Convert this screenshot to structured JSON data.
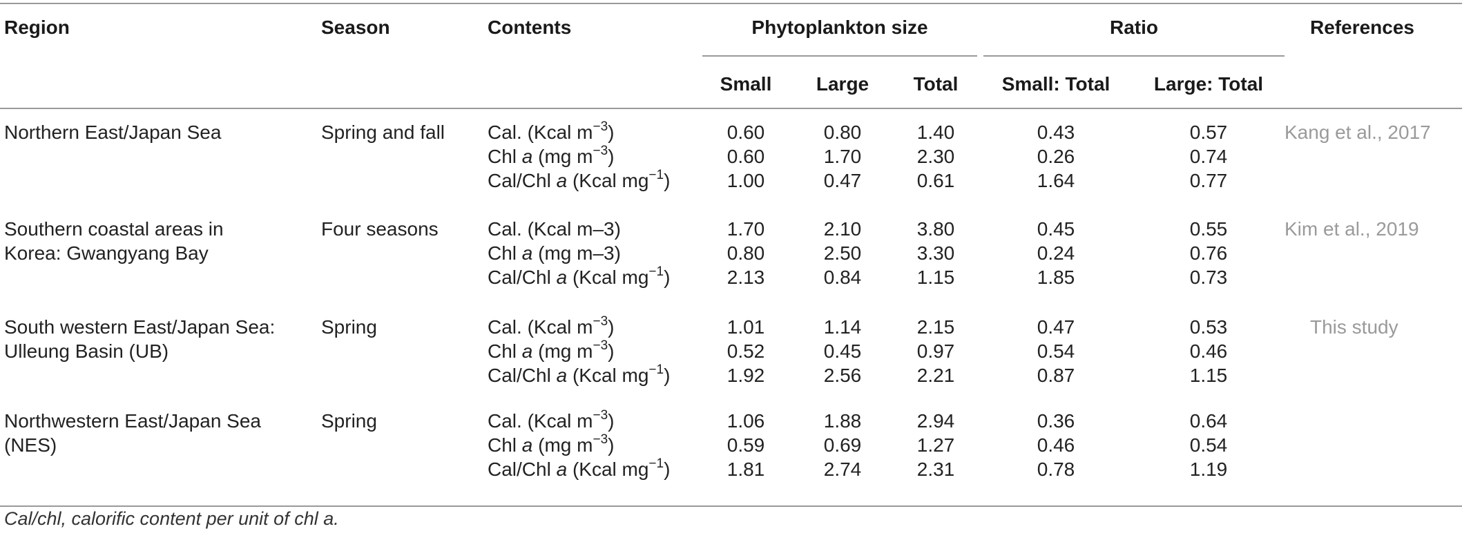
{
  "headers": {
    "region": "Region",
    "season": "Season",
    "contents": "Contents",
    "phytoplankton_size": "Phytoplankton size",
    "ratio": "Ratio",
    "references": "References",
    "small": "Small",
    "large": "Large",
    "total": "Total",
    "small_total": "Small: Total",
    "large_total": "Large: Total"
  },
  "groups": [
    {
      "region_lines": [
        "Northern East/Japan Sea"
      ],
      "season": "Spring and fall",
      "reference": "Kang et al., 2017",
      "rows": [
        {
          "c_pre": "Cal. (Kcal m",
          "c_it": "",
          "c_mid": "",
          "c_sup": "−3",
          "c_post": ")",
          "small": "0.60",
          "large": "0.80",
          "total": "1.40",
          "small_total": "0.43",
          "large_total": "0.57"
        },
        {
          "c_pre": "Chl ",
          "c_it": "a",
          "c_mid": " (mg m",
          "c_sup": "−3",
          "c_post": ")",
          "small": "0.60",
          "large": "1.70",
          "total": "2.30",
          "small_total": "0.26",
          "large_total": "0.74"
        },
        {
          "c_pre": "Cal/Chl ",
          "c_it": "a",
          "c_mid": " (Kcal mg",
          "c_sup": "−1",
          "c_post": ")",
          "small": "1.00",
          "large": "0.47",
          "total": "0.61",
          "small_total": "1.64",
          "large_total": "0.77"
        }
      ]
    },
    {
      "region_lines": [
        "Southern coastal areas in",
        "Korea: Gwangyang Bay"
      ],
      "season": "Four seasons",
      "reference": "Kim et al., 2019",
      "rows": [
        {
          "c_pre": "Cal. (Kcal m–3)",
          "c_it": "",
          "c_mid": "",
          "c_sup": "",
          "c_post": "",
          "small": "1.70",
          "large": "2.10",
          "total": "3.80",
          "small_total": "0.45",
          "large_total": "0.55"
        },
        {
          "c_pre": "Chl ",
          "c_it": "a",
          "c_mid": " (mg m–3)",
          "c_sup": "",
          "c_post": "",
          "small": "0.80",
          "large": "2.50",
          "total": "3.30",
          "small_total": "0.24",
          "large_total": "0.76"
        },
        {
          "c_pre": "Cal/Chl ",
          "c_it": "a",
          "c_mid": " (Kcal mg",
          "c_sup": "−1",
          "c_post": ")",
          "small": "2.13",
          "large": "0.84",
          "total": "1.15",
          "small_total": "1.85",
          "large_total": "0.73"
        }
      ]
    },
    {
      "region_lines": [
        "South western East/Japan Sea:",
        "Ulleung Basin (UB)"
      ],
      "season": "Spring",
      "reference": "This study",
      "rows": [
        {
          "c_pre": "Cal. (Kcal m",
          "c_it": "",
          "c_mid": "",
          "c_sup": "−3",
          "c_post": ")",
          "small": "1.01",
          "large": "1.14",
          "total": "2.15",
          "small_total": "0.47",
          "large_total": "0.53"
        },
        {
          "c_pre": "Chl ",
          "c_it": "a",
          "c_mid": " (mg m",
          "c_sup": "−3",
          "c_post": ")",
          "small": "0.52",
          "large": "0.45",
          "total": "0.97",
          "small_total": "0.54",
          "large_total": "0.46"
        },
        {
          "c_pre": "Cal/Chl ",
          "c_it": "a",
          "c_mid": " (Kcal mg",
          "c_sup": "−1",
          "c_post": ")",
          "small": "1.92",
          "large": "2.56",
          "total": "2.21",
          "small_total": "0.87",
          "large_total": "1.15"
        }
      ]
    },
    {
      "region_lines": [
        "Northwestern East/Japan Sea",
        "(NES)"
      ],
      "season": "Spring",
      "reference": "",
      "rows": [
        {
          "c_pre": "Cal. (Kcal m",
          "c_it": "",
          "c_mid": "",
          "c_sup": "−3",
          "c_post": ")",
          "small": "1.06",
          "large": "1.88",
          "total": "2.94",
          "small_total": "0.36",
          "large_total": "0.64"
        },
        {
          "c_pre": "Chl ",
          "c_it": "a",
          "c_mid": " (mg m",
          "c_sup": "−3",
          "c_post": ")",
          "small": "0.59",
          "large": "0.69",
          "total": "1.27",
          "small_total": "0.46",
          "large_total": "0.54"
        },
        {
          "c_pre": "Cal/Chl ",
          "c_it": "a",
          "c_mid": " (Kcal mg",
          "c_sup": "−1",
          "c_post": ")",
          "small": "1.81",
          "large": "2.74",
          "total": "2.31",
          "small_total": "0.78",
          "large_total": "1.19"
        }
      ]
    }
  ],
  "footnote": "Cal/chl, calorific content per unit of chl a."
}
